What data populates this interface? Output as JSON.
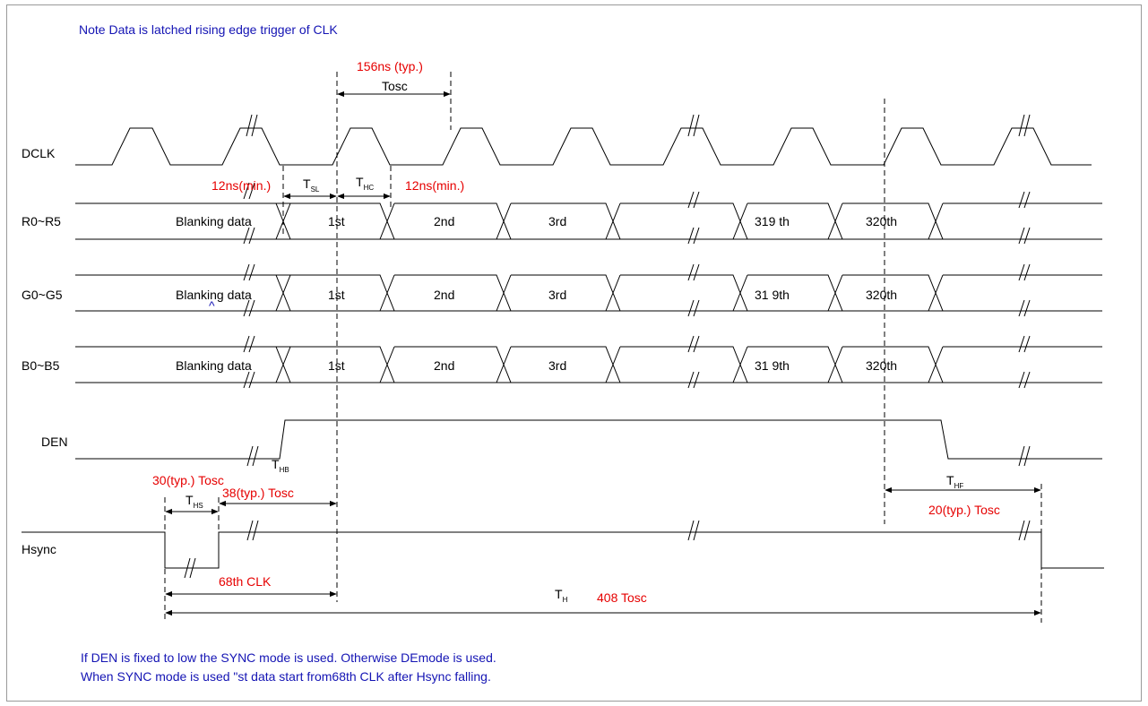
{
  "colors": {
    "signal": "#000000",
    "annotation": "#e60000",
    "note": "#1414b4",
    "border": "#9a9a9a"
  },
  "note_top": "Note Data is latched rising edge trigger of CLK",
  "signals": {
    "dclk": "DCLK",
    "r": "R0~R5",
    "g": "G0~G5",
    "b": "B0~B5",
    "den": "DEN",
    "hsync": "Hsync"
  },
  "cells": {
    "blanking": "Blanking data",
    "first": "1st",
    "second": "2nd",
    "third": "3rd",
    "r_319": "319 th",
    "r_320": "320th",
    "g_319": "31 9th",
    "g_320": "320th",
    "b_319": "31 9th",
    "b_320": "320th",
    "caret": "^"
  },
  "timing": {
    "tosc_typ": "156ns (typ.)",
    "tosc": "Tosc",
    "setup_min": "12ns(min.)",
    "hold_min": "12ns(min.)",
    "t_letter": "T",
    "sub_sl": "SL",
    "sub_hc": "HC",
    "sub_hb": "HB",
    "sub_hs": "HS",
    "sub_hf": "HF",
    "sub_h": "H",
    "ths_typ": "30(typ.) Tosc",
    "hb_typ": "38(typ.) Tosc",
    "thf_typ": "20(typ.) Tosc",
    "clk68": "68th CLK",
    "th_total": "408 Tosc"
  },
  "notes_bottom": [
    "If DEN is fixed to low the SYNC mode is used. Otherwise DEmode is used.",
    "When SYNC mode is used \"st data start from68th CLK after Hsync falling."
  ]
}
